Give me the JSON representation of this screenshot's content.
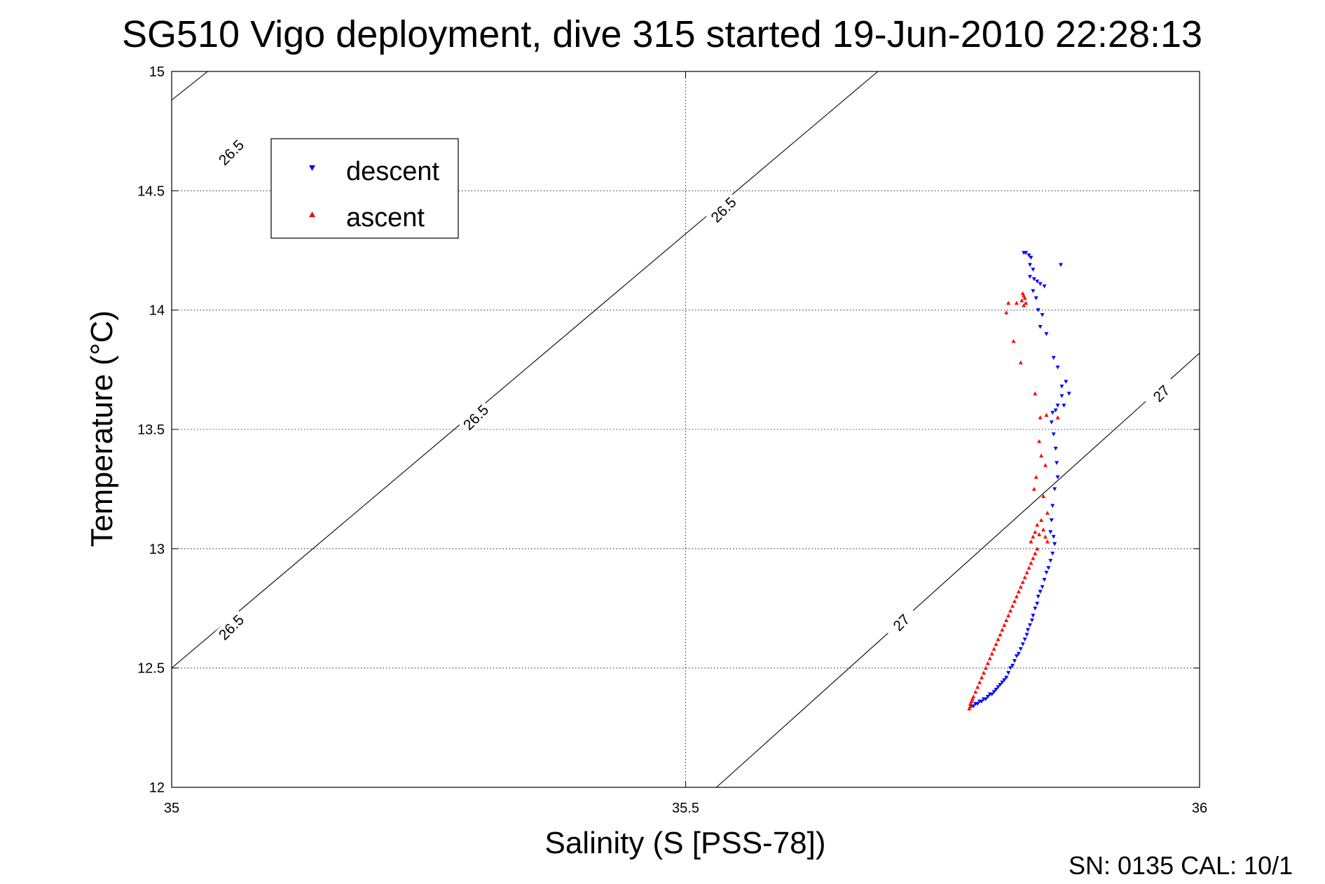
{
  "chart_data": {
    "type": "scatter",
    "title": "SG510 Vigo deployment, dive 315 started 19-Jun-2010 22:28:13",
    "xlabel": "Salinity (S [PSS-78])",
    "ylabel": "Temperature (°C)",
    "xlim": [
      35,
      36
    ],
    "ylim": [
      12,
      15
    ],
    "xticks": [
      "35",
      "35.5",
      "36"
    ],
    "yticks": [
      "12",
      "12.5",
      "13",
      "13.5",
      "14",
      "14.5",
      "15"
    ],
    "grid": true,
    "legend_position": "top-left",
    "footer": "SN: 0135  CAL: 10/1",
    "density_contours": [
      {
        "label": "26.5",
        "points": [
          [
            35.0,
            14.88
          ],
          [
            35.0,
            12.5
          ],
          [
            35.687,
            15.0
          ]
        ]
      },
      {
        "label": "27",
        "points": [
          [
            35.53,
            12.0
          ],
          [
            36.0,
            13.82
          ]
        ]
      }
    ],
    "contour_labels": [
      {
        "text": "26.5",
        "x": 35.058,
        "y": 14.66
      },
      {
        "text": "26.5",
        "x": 35.537,
        "y": 14.42
      },
      {
        "text": "26.5",
        "x": 35.296,
        "y": 13.55
      },
      {
        "text": "26.5",
        "x": 35.058,
        "y": 12.67
      },
      {
        "text": "27",
        "x": 35.71,
        "y": 12.69
      },
      {
        "text": "27",
        "x": 35.963,
        "y": 13.65
      }
    ],
    "series": [
      {
        "name": "descent",
        "color": "#0000ff",
        "marker": "triangle-down",
        "x": [
          35.829,
          35.831,
          35.834,
          35.836,
          35.835,
          35.838,
          35.839,
          35.842,
          35.845,
          35.849,
          35.865,
          35.835,
          35.838,
          35.841,
          35.843,
          35.847,
          35.851,
          35.845,
          35.858,
          35.862,
          35.866,
          35.868,
          35.87,
          35.873,
          35.866,
          35.862,
          35.86,
          35.857,
          35.856,
          35.858,
          35.86,
          35.861,
          35.862,
          35.859,
          35.857,
          35.856,
          35.855,
          35.858,
          35.859,
          35.857,
          35.855,
          35.853,
          35.851,
          35.849,
          35.847,
          35.845,
          35.843,
          35.842,
          35.84,
          35.838,
          35.837,
          35.835,
          35.833,
          35.832,
          35.83,
          35.828,
          35.826,
          35.824,
          35.822,
          35.82,
          35.818,
          35.816,
          35.814,
          35.812,
          35.81,
          35.808,
          35.806,
          35.804,
          35.802,
          35.8,
          35.798,
          35.796,
          35.794,
          35.792,
          35.79,
          35.788,
          35.786,
          35.784,
          35.782,
          35.78,
          35.778
        ],
        "y": [
          14.24,
          14.24,
          14.23,
          14.22,
          14.19,
          14.17,
          14.13,
          14.12,
          14.11,
          14.1,
          14.19,
          14.14,
          14.08,
          14.05,
          14.0,
          13.98,
          13.9,
          13.93,
          13.8,
          13.76,
          13.68,
          13.6,
          13.7,
          13.65,
          13.64,
          13.6,
          13.58,
          13.57,
          13.53,
          13.48,
          13.42,
          13.36,
          13.3,
          13.25,
          13.18,
          13.12,
          13.07,
          13.05,
          13.02,
          12.98,
          12.95,
          12.92,
          12.9,
          12.87,
          12.84,
          12.82,
          12.8,
          12.77,
          12.75,
          12.72,
          12.7,
          12.68,
          12.66,
          12.64,
          12.62,
          12.6,
          12.58,
          12.56,
          12.55,
          12.53,
          12.51,
          12.5,
          12.48,
          12.46,
          12.45,
          12.44,
          12.43,
          12.42,
          12.41,
          12.4,
          12.39,
          12.39,
          12.38,
          12.37,
          12.37,
          12.36,
          12.36,
          12.35,
          12.35,
          12.34,
          12.34
        ]
      },
      {
        "name": "ascent",
        "color": "#ff0000",
        "marker": "triangle-up",
        "x": [
          35.828,
          35.829,
          35.83,
          35.827,
          35.831,
          35.829,
          35.822,
          35.814,
          35.812,
          35.819,
          35.826,
          35.84,
          35.845,
          35.851,
          35.862,
          35.844,
          35.846,
          35.85,
          35.841,
          35.839,
          35.848,
          35.852,
          35.846,
          35.842,
          35.84,
          35.838,
          35.836,
          35.844,
          35.848,
          35.85,
          35.852,
          35.842,
          35.84,
          35.838,
          35.836,
          35.834,
          35.832,
          35.83,
          35.828,
          35.826,
          35.824,
          35.822,
          35.82,
          35.818,
          35.816,
          35.814,
          35.812,
          35.81,
          35.808,
          35.806,
          35.804,
          35.802,
          35.8,
          35.798,
          35.796,
          35.794,
          35.792,
          35.79,
          35.788,
          35.786,
          35.784,
          35.782,
          35.78,
          35.779,
          35.778,
          35.777,
          35.777,
          35.776
        ],
        "y": [
          14.07,
          14.06,
          14.05,
          14.04,
          14.03,
          14.02,
          14.03,
          14.03,
          13.99,
          13.87,
          13.78,
          13.65,
          13.55,
          13.56,
          13.55,
          13.45,
          13.39,
          13.35,
          13.3,
          13.25,
          13.22,
          13.15,
          13.12,
          13.1,
          13.07,
          13.05,
          13.03,
          13.06,
          13.08,
          13.05,
          13.03,
          13.0,
          12.98,
          12.96,
          12.94,
          12.92,
          12.9,
          12.88,
          12.86,
          12.84,
          12.82,
          12.8,
          12.78,
          12.76,
          12.74,
          12.72,
          12.7,
          12.68,
          12.66,
          12.64,
          12.62,
          12.6,
          12.58,
          12.56,
          12.54,
          12.52,
          12.5,
          12.48,
          12.46,
          12.44,
          12.42,
          12.4,
          12.38,
          12.37,
          12.36,
          12.35,
          12.34,
          12.33
        ]
      }
    ]
  }
}
